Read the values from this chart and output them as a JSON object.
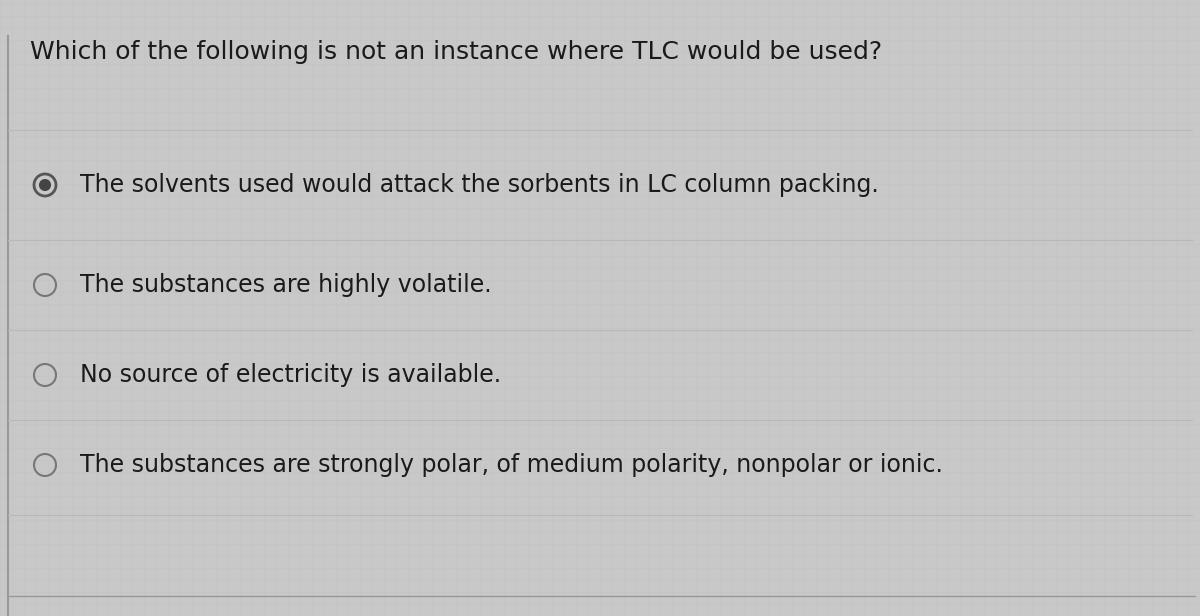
{
  "question": "Which of the following is not an instance where TLC would be used?",
  "options": [
    "The solvents used would attack the sorbents in LC column packing.",
    "The substances are highly volatile.",
    "No source of electricity is available.",
    "The substances are strongly polar, of medium polarity, nonpolar or ionic."
  ],
  "selected_index": 0,
  "bg_color": "#c8c8c8",
  "text_color": "#1a1a1a",
  "line_color": "#b0b0b0",
  "question_fontsize": 18,
  "option_fontsize": 17
}
